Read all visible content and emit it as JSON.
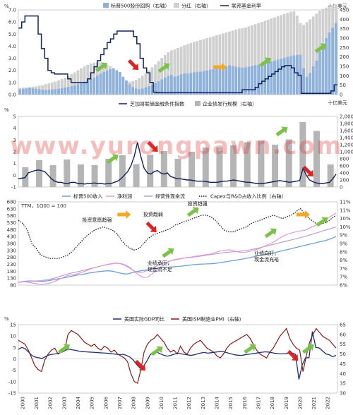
{
  "colors": {
    "buyback": "#8fb2dc",
    "dividend": "#cfcfcf",
    "fedfunds": "#13235e",
    "chicago": "#13235e",
    "bonds": "#b5b5b5",
    "sales": "#6f9fd6",
    "netincome": "#e39bd0",
    "opcf": "#c09ad6",
    "capex": "#1a1a1a",
    "gdp": "#1f2e73",
    "pmi": "#8b1a1a",
    "up_arrow": "#7cc24a",
    "down_arrow": "#dd2222",
    "flat_arrow": "#f5a623",
    "watermark": "#e23b3b"
  },
  "watermark": "www.yurongpawn.com",
  "years": [
    "2000",
    "2001",
    "2002",
    "2003",
    "2004",
    "2005",
    "2006",
    "2007",
    "2008",
    "2009",
    "2010",
    "2011",
    "2012",
    "2013",
    "2014",
    "2015",
    "2016",
    "2017",
    "2018",
    "2019",
    "2020",
    "2021",
    "2022"
  ],
  "chart_data": [
    {
      "type": "bar",
      "id": "panel1",
      "series": [
        {
          "name": "标普500股份回购（右轴）",
          "type": "bar",
          "axis": "right"
        },
        {
          "name": "分红（右轴）",
          "type": "bar",
          "axis": "right"
        },
        {
          "name": "联邦基金利率",
          "type": "line",
          "axis": "left"
        }
      ],
      "left_unit": "%",
      "right_unit": "十亿美元",
      "left_ticks": [
        "0.0",
        "1.0",
        "2.0",
        "3.0",
        "4.0",
        "5.0",
        "6.0",
        "7.0"
      ],
      "right_ticks": [
        "0",
        "50",
        "100",
        "150",
        "200",
        "250",
        "300",
        "350",
        "400",
        "450"
      ],
      "ylim_left": [
        0,
        7
      ],
      "ylim_right": [
        0,
        450
      ],
      "quarters_per_year": 4,
      "buyback": [
        28,
        30,
        33,
        35,
        33,
        30,
        28,
        26,
        24,
        25,
        27,
        29,
        31,
        34,
        37,
        40,
        45,
        50,
        55,
        60,
        68,
        75,
        83,
        90,
        100,
        110,
        120,
        128,
        135,
        140,
        130,
        120,
        95,
        75,
        55,
        40,
        32,
        28,
        32,
        38,
        45,
        52,
        60,
        70,
        80,
        90,
        100,
        105,
        95,
        100,
        108,
        112,
        112,
        115,
        118,
        120,
        122,
        125,
        128,
        132,
        135,
        138,
        142,
        145,
        150,
        155,
        152,
        148,
        145,
        143,
        145,
        148,
        152,
        156,
        158,
        160,
        165,
        170,
        175,
        180,
        185,
        190,
        195,
        200,
        205,
        208,
        210,
        212,
        140,
        95,
        115,
        150,
        180,
        230,
        270,
        300,
        330,
        355,
        380
      ],
      "dividend": [
        35,
        37,
        38,
        40,
        42,
        44,
        47,
        50,
        55,
        60,
        65,
        70,
        75,
        82,
        90,
        98,
        108,
        118,
        128,
        140,
        150,
        158,
        165,
        170,
        172,
        170,
        165,
        158,
        150,
        140,
        122,
        105,
        85,
        72,
        68,
        72,
        78,
        88,
        100,
        112,
        128,
        145,
        160,
        178,
        195,
        210,
        225,
        235,
        240,
        248,
        255,
        262,
        268,
        274,
        280,
        285,
        290,
        295,
        300,
        305,
        310,
        315,
        320,
        325,
        330,
        335,
        340,
        345,
        350,
        352,
        356,
        362,
        368,
        374,
        380,
        386,
        392,
        398,
        404,
        410,
        416,
        422,
        428,
        434,
        440,
        442,
        420,
        380,
        370,
        385,
        400,
        415,
        430,
        445,
        455,
        462,
        470,
        475,
        480
      ],
      "fedfunds": [
        5.5,
        6.0,
        6.5,
        6.5,
        6.5,
        6.5,
        5.0,
        3.8,
        3.0,
        2.0,
        1.8,
        1.7,
        1.7,
        1.7,
        1.7,
        1.3,
        1.0,
        1.0,
        1.0,
        1.0,
        1.0,
        1.3,
        1.8,
        2.3,
        2.8,
        3.3,
        3.8,
        4.3,
        4.6,
        5.0,
        5.25,
        5.25,
        5.25,
        5.25,
        5.25,
        4.8,
        4.2,
        3.0,
        2.2,
        1.8,
        1.0,
        0.2,
        0.15,
        0.15,
        0.15,
        0.15,
        0.15,
        0.15,
        0.15,
        0.15,
        0.15,
        0.15,
        0.15,
        0.15,
        0.15,
        0.15,
        0.15,
        0.15,
        0.15,
        0.15,
        0.15,
        0.15,
        0.15,
        0.15,
        0.15,
        0.15,
        0.15,
        0.15,
        0.4,
        0.4,
        0.4,
        0.4,
        0.6,
        0.9,
        1.1,
        1.3,
        1.5,
        1.7,
        1.9,
        2.1,
        2.3,
        2.4,
        2.4,
        2.2,
        1.8,
        1.6,
        0.1,
        0.1,
        0.1,
        0.1,
        0.1,
        0.1,
        0.1,
        0.1,
        0.1,
        0.3,
        0.8
      ]
    },
    {
      "type": "bar",
      "id": "panel2",
      "series": [
        {
          "name": "芝加哥联储金融条件指数",
          "type": "line",
          "axis": "left"
        },
        {
          "name": "企业债发行规模（右轴）",
          "type": "bar",
          "axis": "right"
        }
      ],
      "left_unit": "%",
      "right_unit": "十亿美元",
      "left_ticks": [
        "-1",
        "0",
        "1",
        "2",
        "3",
        "4",
        "5"
      ],
      "right_ticks": [
        "0",
        "200",
        "400",
        "600",
        "800",
        "1,000",
        "1,200",
        "1,400",
        "1,600",
        "1,800",
        "2,000"
      ],
      "ylim_left": [
        -1,
        5
      ],
      "ylim_right": [
        0,
        2000
      ],
      "bond_years": [
        "2000",
        "2001",
        "2002",
        "2003",
        "2004",
        "2005",
        "2006",
        "2007",
        "2008",
        "2009",
        "2010",
        "2011",
        "2012",
        "2013",
        "2014",
        "2015",
        "2016",
        "2017",
        "2018",
        "2019",
        "2020",
        "2021",
        "2022"
      ],
      "bonds": [
        560,
        760,
        620,
        780,
        640,
        620,
        800,
        900,
        650,
        920,
        1020,
        800,
        1000,
        1120,
        1120,
        1180,
        1270,
        1320,
        1200,
        1350,
        1840,
        1590,
        640
      ],
      "chicago": [
        -0.3,
        -0.25,
        -0.2,
        0.2,
        0.3,
        0.4,
        0.45,
        0.4,
        0.3,
        0.0,
        -0.3,
        -0.5,
        -0.6,
        -0.6,
        -0.7,
        -0.7,
        -0.6,
        -0.6,
        -0.7,
        -0.7,
        -0.75,
        -0.7,
        -0.7,
        -0.65,
        -0.7,
        -0.7,
        -0.75,
        -0.7,
        -0.7,
        -0.6,
        -0.5,
        -0.3,
        0.0,
        0.3,
        0.8,
        1.6,
        2.8,
        1.6,
        0.6,
        0.2,
        0.1,
        0.3,
        0.4,
        0.2,
        0.1,
        0.2,
        -0.1,
        -0.2,
        -0.3,
        -0.3,
        -0.35,
        -0.4,
        -0.4,
        -0.45,
        -0.5,
        -0.5,
        -0.5,
        -0.55,
        -0.6,
        -0.6,
        -0.6,
        -0.55,
        -0.5,
        -0.5,
        -0.45,
        -0.4,
        -0.45,
        -0.5,
        -0.55,
        -0.6,
        -0.6,
        -0.65,
        -0.7,
        -0.7,
        -0.7,
        -0.65,
        -0.6,
        -0.55,
        -0.5,
        -0.45,
        -0.5,
        -0.55,
        -0.6,
        -0.55,
        -0.5,
        -0.45,
        0.6,
        0.0,
        -0.4,
        -0.55,
        -0.65,
        -0.7,
        -0.7,
        -0.65,
        -0.6,
        -0.3,
        0.1
      ]
    },
    {
      "type": "line",
      "id": "panel3",
      "note": "TTM，1Q00 = 100",
      "series": [
        {
          "name": "标普500收入",
          "axis": "left"
        },
        {
          "name": "净利润",
          "axis": "left"
        },
        {
          "name": "经营性现金流",
          "axis": "left"
        },
        {
          "name": "Capex与R&D占收入比例（右轴）",
          "axis": "right"
        }
      ],
      "left_ticks": [
        "80",
        "130",
        "180",
        "230",
        "280",
        "330",
        "380",
        "430",
        "480",
        "530",
        "580",
        "630",
        "680"
      ],
      "right_ticks": [
        "6%",
        "7%",
        "7%",
        "8%",
        "8%",
        "9%",
        "9%",
        "10%",
        "10%",
        "11%",
        "11%"
      ],
      "ylim_left": [
        80,
        680
      ],
      "ylim_right": [
        6,
        11
      ],
      "sales": [
        100,
        105,
        108,
        110,
        110,
        109,
        108,
        107,
        110,
        114,
        119,
        124,
        128,
        133,
        138,
        143,
        148,
        153,
        157,
        161,
        166,
        170,
        174,
        177,
        180,
        182,
        183,
        180,
        174,
        168,
        163,
        160,
        166,
        172,
        178,
        183,
        187,
        191,
        195,
        199,
        202,
        205,
        207,
        209,
        211,
        213,
        215,
        218,
        221,
        224,
        227,
        229,
        231,
        232,
        233,
        234,
        236,
        239,
        243,
        247,
        251,
        255,
        259,
        263,
        267,
        272,
        277,
        282,
        287,
        292,
        297,
        302,
        307,
        312,
        318,
        324,
        330,
        336,
        342,
        348,
        354,
        360,
        366,
        372,
        378,
        384,
        390,
        396,
        402,
        410,
        420,
        430
      ],
      "netincome": [
        100,
        104,
        102,
        96,
        90,
        86,
        88,
        95,
        105,
        120,
        135,
        148,
        155,
        160,
        170,
        182,
        195,
        205,
        215,
        222,
        228,
        234,
        238,
        235,
        225,
        205,
        175,
        150,
        135,
        140,
        165,
        190,
        215,
        235,
        255,
        265,
        270,
        275,
        280,
        285,
        290,
        295,
        300,
        305,
        315,
        325,
        330,
        335,
        330,
        320,
        315,
        318,
        325,
        335,
        345,
        360,
        375,
        390,
        410,
        430,
        445,
        455,
        465,
        470,
        475,
        490,
        505,
        520,
        540,
        560,
        580,
        600
      ],
      "opcf": [
        100,
        103,
        106,
        108,
        110,
        112,
        116,
        122,
        130,
        140,
        150,
        160,
        168,
        175,
        182,
        190,
        198,
        206,
        214,
        222,
        230,
        236,
        240,
        232,
        220,
        200,
        180,
        170,
        175,
        190,
        205,
        220,
        235,
        245,
        255,
        262,
        268,
        274,
        278,
        282,
        286,
        290,
        295,
        300,
        305,
        310,
        315,
        318,
        320,
        322,
        326,
        330,
        336,
        342,
        350,
        358,
        366,
        374,
        382,
        390,
        398,
        406,
        414,
        422,
        430,
        440,
        450,
        460,
        470,
        480,
        490,
        500
      ],
      "capex": [
        9.9,
        9.7,
        9.3,
        8.5,
        8.2,
        7.8,
        7.7,
        7.6,
        7.6,
        7.6,
        7.7,
        7.8,
        8.0,
        8.3,
        8.6,
        8.9,
        9.1,
        9.3,
        9.4,
        9.5,
        9.4,
        9.3,
        9.1,
        8.7,
        8.4,
        8.2,
        8.1,
        8.2,
        8.5,
        8.8,
        9.0,
        9.1,
        9.2,
        9.3,
        9.4,
        9.6,
        9.7,
        9.8,
        9.9,
        10.0,
        10.1,
        10.2,
        10.2,
        10.1,
        9.9,
        9.6,
        9.3,
        9.2,
        9.2,
        9.3,
        9.4,
        9.5,
        9.7,
        9.8,
        9.9,
        10.0,
        10.1,
        10.2,
        10.1,
        10.0,
        10.1,
        10.2,
        10.4,
        10.6,
        10.3,
        10.0,
        9.8,
        9.6,
        9.7,
        9.8,
        10.0,
        10.2
      ],
      "annotations": [
        "投资意愿趋强",
        "投资趋弱",
        "投资趋强",
        "业绩承压，现金流不足",
        "业绩向好，现金流充裕"
      ]
    },
    {
      "type": "line",
      "id": "panel4",
      "series": [
        {
          "name": "美国实际GDP同比",
          "axis": "left"
        },
        {
          "name": "美国ISM制造业PMI（右轴）",
          "axis": "right"
        }
      ],
      "left_unit": "%",
      "left_ticks": [
        "-15",
        "-10",
        "-5",
        "0",
        "5",
        "10",
        "15"
      ],
      "right_ticks": [
        "30",
        "35",
        "40",
        "45",
        "50",
        "55",
        "60",
        "65"
      ],
      "ylim_left": [
        -15,
        15
      ],
      "ylim_right": [
        30,
        65
      ],
      "gdp": [
        4.2,
        5.0,
        4.5,
        3.0,
        1.5,
        0.8,
        0.5,
        0.2,
        1.0,
        1.7,
        2.0,
        2.2,
        2.5,
        3.0,
        3.8,
        4.3,
        4.0,
        3.7,
        3.4,
        3.2,
        3.1,
        3.0,
        2.9,
        2.8,
        2.7,
        2.6,
        2.5,
        2.4,
        2.2,
        2.0,
        1.9,
        2.0,
        1.5,
        0.8,
        -0.5,
        -2.5,
        -4.0,
        -3.3,
        -1.0,
        1.8,
        2.8,
        3.0,
        2.2,
        1.6,
        1.2,
        1.5,
        2.0,
        2.5,
        2.3,
        2.0,
        1.8,
        1.5,
        1.8,
        2.2,
        2.6,
        2.8,
        2.5,
        2.7,
        2.9,
        3.1,
        3.3,
        3.0,
        2.6,
        2.2,
        1.8,
        1.6,
        1.5,
        1.8,
        2.0,
        2.2,
        2.4,
        2.7,
        2.9,
        3.1,
        3.0,
        2.7,
        2.4,
        2.3,
        2.2,
        2.3,
        2.5,
        2.6,
        2.0,
        -9.0,
        -2.5,
        0.5,
        0.5,
        12.0,
        5.0,
        4.8,
        3.5,
        2.2,
        1.8,
        1.0,
        1.5
      ],
      "pmi": [
        57,
        56,
        55,
        52,
        48,
        44,
        42,
        41,
        47,
        50,
        52,
        53,
        50,
        51,
        52,
        60,
        62,
        61,
        60,
        58,
        56,
        55,
        54,
        55,
        53,
        52,
        54,
        53,
        51,
        52,
        50,
        49,
        48,
        46,
        40,
        36,
        35,
        42,
        51,
        55,
        57,
        58,
        60,
        58,
        56,
        53,
        51,
        52,
        50,
        54,
        51,
        50,
        53,
        55,
        56,
        57,
        55,
        53,
        52,
        51,
        49,
        48,
        50,
        53,
        55,
        56,
        57,
        58,
        59,
        60,
        58,
        55,
        52,
        50,
        49,
        48,
        51,
        53,
        56,
        59,
        61,
        63,
        58,
        55,
        53,
        52,
        41,
        49,
        56,
        60,
        63,
        61,
        59,
        58,
        57,
        55,
        53
      ]
    }
  ]
}
